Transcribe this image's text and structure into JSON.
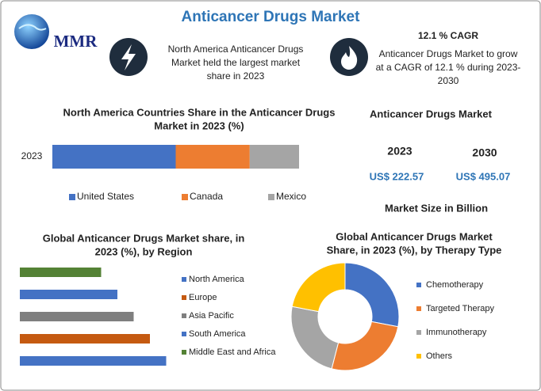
{
  "header": {
    "title": "Anticancer Drugs Market",
    "logo": "MMR"
  },
  "callouts": [
    {
      "lines": [
        "North America Anticancer Drugs",
        "Market held the largest market",
        "share in 2023"
      ]
    },
    {
      "heading": "12.1 % CAGR",
      "lines": [
        "Anticancer Drugs Market to grow",
        "at a CAGR of 12.1 % during 2023-",
        "2030"
      ]
    }
  ],
  "market": {
    "title": "Anticancer Drugs Market",
    "years": [
      "2023",
      "2030"
    ],
    "amounts": [
      "US$ 222.57",
      "US$ 495.07"
    ],
    "note": "Market Size in Billion"
  },
  "chart_data": [
    {
      "type": "stacked-bar",
      "title": [
        "North America Countries Share in the Anticancer Drugs",
        "Market in 2023 (%)"
      ],
      "categories": [
        "2023"
      ],
      "xlim": [
        0,
        100
      ],
      "series": [
        {
          "name": "United States",
          "color": "#4472c4",
          "values": [
            50
          ]
        },
        {
          "name": "Canada",
          "color": "#ed7d31",
          "values": [
            30
          ]
        },
        {
          "name": "Mexico",
          "color": "#a5a5a5",
          "values": [
            20
          ]
        }
      ]
    },
    {
      "type": "bar",
      "title": [
        "Global Anticancer Drugs Market share, in",
        "2023 (%), by Region"
      ],
      "categories": [
        "North America",
        "Europe",
        "Asia Pacific",
        "South America",
        "Middle East and Africa"
      ],
      "values": [
        36,
        32,
        28,
        24,
        20
      ],
      "colors": [
        "#4472c4",
        "#c55a11",
        "#7f7f7f",
        "#4472c4",
        "#548235"
      ],
      "xlim": [
        0,
        40
      ]
    },
    {
      "type": "donut",
      "title": [
        "Global Anticancer Drugs Market",
        "Share, in 2023 (%), by Therapy Type"
      ],
      "categories": [
        "Chemotherapy",
        "Targeted Therapy",
        "Immunotherapy",
        "Others"
      ],
      "values": [
        28,
        26,
        24,
        22
      ],
      "colors": [
        "#4472c4",
        "#ed7d31",
        "#a5a5a5",
        "#ffc000"
      ]
    }
  ]
}
